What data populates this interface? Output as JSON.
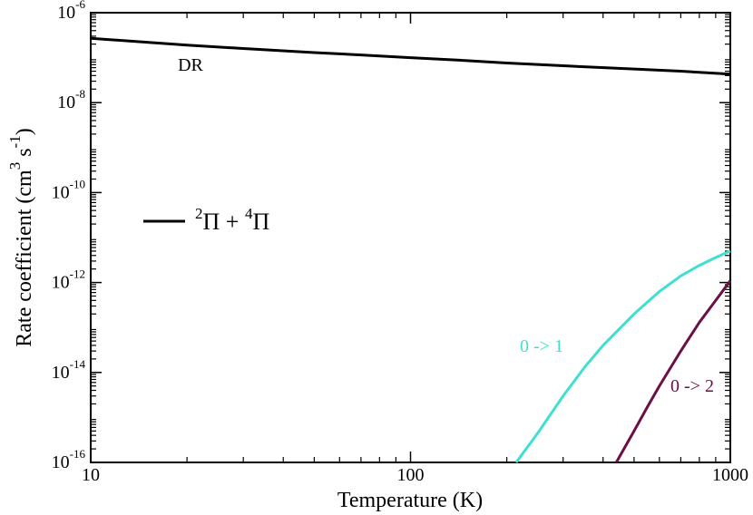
{
  "chart_data": {
    "type": "line",
    "xlabel": "Temperature (K)",
    "ylabel": {
      "prefix": "Rate coefficient (cm",
      "exp1": "3",
      "mid": " s",
      "exp2": "-1",
      "suffix": ")"
    },
    "x_scale": "log",
    "y_scale": "log",
    "xlim": [
      10,
      1000
    ],
    "ylim": [
      1e-16,
      1e-06
    ],
    "x_ticks": [
      {
        "value": 10,
        "label": "10"
      },
      {
        "value": 100,
        "label": "100"
      },
      {
        "value": 1000,
        "label": "1000"
      }
    ],
    "y_ticks": [
      {
        "value": 1e-16,
        "base": "10",
        "exp": "-16"
      },
      {
        "value": 1e-14,
        "base": "10",
        "exp": "-14"
      },
      {
        "value": 1e-12,
        "base": "10",
        "exp": "-12"
      },
      {
        "value": 1e-10,
        "base": "10",
        "exp": "-10"
      },
      {
        "value": 1e-08,
        "base": "10",
        "exp": "-8"
      },
      {
        "value": 1e-06,
        "base": "10",
        "exp": "-6"
      }
    ],
    "grid": false,
    "legend": {
      "placement": "middle-left",
      "entries": [
        {
          "color": "#000000",
          "parts": [
            "2",
            "Π + ",
            "4",
            "Π"
          ]
        }
      ]
    },
    "series": [
      {
        "label": "DR",
        "color": "#000000",
        "x": [
          10,
          15,
          20,
          30,
          50,
          70,
          100,
          150,
          200,
          300,
          500,
          700,
          1000
        ],
        "y": [
          2.7e-07,
          2.2e-07,
          1.9e-07,
          1.6e-07,
          1.3e-07,
          1.15e-07,
          1e-07,
          8.6e-08,
          7.6e-08,
          6.6e-08,
          5.6e-08,
          5e-08,
          4.3e-08
        ]
      },
      {
        "label": "0 -> 1",
        "color": "#40E0D0",
        "x": [
          214,
          250,
          300,
          350,
          400,
          500,
          600,
          700,
          800,
          900,
          1000
        ],
        "y": [
          1e-16,
          4.5e-16,
          3e-15,
          1.3e-14,
          4e-14,
          2e-13,
          6.3e-13,
          1.4e-12,
          2.4e-12,
          3.6e-12,
          5e-12
        ]
      },
      {
        "label": "0 -> 2",
        "color": "#6A1045",
        "x": [
          440,
          500,
          550,
          600,
          700,
          800,
          900,
          1000
        ],
        "y": [
          1e-16,
          5e-16,
          1.7e-15,
          5e-15,
          3e-14,
          1.3e-13,
          4e-13,
          1.1e-12
        ]
      }
    ]
  }
}
